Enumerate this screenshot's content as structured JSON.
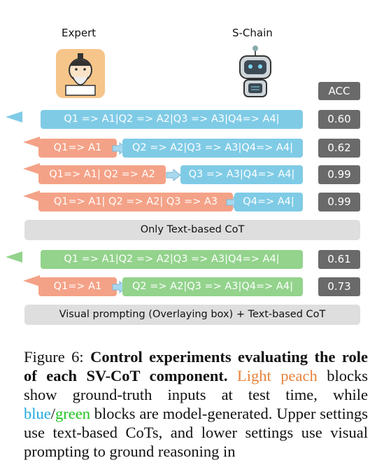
{
  "figure": {
    "labels": {
      "expert": "Expert",
      "model": "S-Chain",
      "acc_header": "ACC"
    },
    "upper_rows": [
      {
        "output": "Q1 => A1|Q2 => A2|Q3 => A3|Q4=> A4|",
        "acc": "0.60"
      },
      {
        "input": "Q1=> A1",
        "output": "Q2 => A2|Q3 => A3|Q4=> A4|",
        "acc": "0.62"
      },
      {
        "input": "Q1=> A1| Q2 => A2",
        "output": "Q3 => A3|Q4=> A4|",
        "acc": "0.99"
      },
      {
        "input": "Q1=> A1| Q2 => A2| Q3 => A3",
        "output": "Q4=> A4|",
        "acc": "0.99"
      }
    ],
    "upper_label": "Only Text-based CoT",
    "lower_rows": [
      {
        "output": "Q1 => A1|Q2 => A2|Q3 => A3|Q4=> A4|",
        "acc": "0.61"
      },
      {
        "input": "Q1=> A1",
        "output": "Q2 => A2|Q3 => A3|Q4=> A4|",
        "acc": "0.73"
      }
    ],
    "lower_label": "Visual prompting (Overlaying box) + Text-based CoT"
  },
  "caption": {
    "label": "Figure 6:",
    "title": "Control experiments evaluating the role of each SV-CoT component",
    "period": ".",
    "peach": "Light peach",
    "text1": "blocks show ground-truth inputs at test time, while",
    "blue": "blue",
    "slash": "/",
    "green": "green",
    "text2": "blocks are model-generated. Upper settings use text-based CoTs, and lower settings use visual prompting to ground reasoning in"
  }
}
